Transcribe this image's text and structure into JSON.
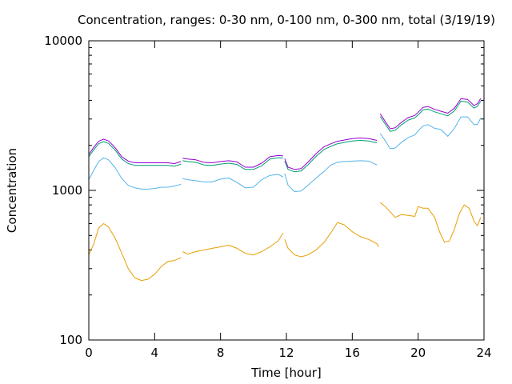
{
  "chart_data": {
    "type": "line",
    "title": "Concentration, ranges: 0-30 nm, 0-100 nm, 0-300 nm, total (3/19/19)",
    "xlabel": "Time [hour]",
    "ylabel": "Concentration",
    "xlim": [
      0,
      24
    ],
    "ylim": [
      100,
      10000
    ],
    "yscale": "log",
    "xticks": [
      "0",
      "4",
      "8",
      "12",
      "16",
      "20",
      "24"
    ],
    "yticks": [
      "100",
      "1000",
      "10000"
    ],
    "grid": false,
    "legend": "none",
    "series": [
      {
        "color": "#e69f00",
        "segments": [
          [
            [
              0,
              370
            ],
            [
              0.3,
              440
            ],
            [
              0.6,
              560
            ],
            [
              0.9,
              600
            ],
            [
              1.2,
              570
            ],
            [
              1.6,
              480
            ],
            [
              2.0,
              380
            ],
            [
              2.4,
              300
            ],
            [
              2.8,
              260
            ],
            [
              3.2,
              250
            ],
            [
              3.6,
              255
            ],
            [
              4.0,
              275
            ],
            [
              4.4,
              310
            ],
            [
              4.8,
              335
            ],
            [
              5.2,
              340
            ],
            [
              5.6,
              355
            ]
          ],
          [
            [
              5.7,
              390
            ],
            [
              6.0,
              375
            ],
            [
              6.5,
              390
            ],
            [
              7.0,
              400
            ],
            [
              7.5,
              410
            ],
            [
              8.0,
              420
            ],
            [
              8.5,
              430
            ],
            [
              9.0,
              410
            ],
            [
              9.5,
              380
            ],
            [
              10.0,
              370
            ],
            [
              10.5,
              390
            ],
            [
              11.0,
              420
            ],
            [
              11.5,
              460
            ],
            [
              11.8,
              520
            ]
          ],
          [
            [
              11.9,
              470
            ],
            [
              12.1,
              410
            ],
            [
              12.5,
              370
            ],
            [
              12.9,
              360
            ],
            [
              13.3,
              370
            ],
            [
              13.8,
              400
            ],
            [
              14.3,
              450
            ],
            [
              14.7,
              520
            ],
            [
              15.1,
              610
            ],
            [
              15.5,
              590
            ],
            [
              16.0,
              530
            ],
            [
              16.5,
              490
            ],
            [
              17.0,
              470
            ],
            [
              17.5,
              440
            ],
            [
              17.6,
              420
            ]
          ],
          [
            [
              17.7,
              830
            ],
            [
              18.0,
              780
            ],
            [
              18.3,
              720
            ],
            [
              18.6,
              660
            ],
            [
              19.0,
              690
            ],
            [
              19.4,
              680
            ],
            [
              19.8,
              670
            ],
            [
              20.0,
              780
            ],
            [
              20.3,
              760
            ],
            [
              20.6,
              760
            ],
            [
              21.0,
              660
            ],
            [
              21.3,
              530
            ],
            [
              21.6,
              450
            ],
            [
              21.9,
              460
            ],
            [
              22.2,
              550
            ],
            [
              22.5,
              700
            ],
            [
              22.8,
              800
            ],
            [
              23.1,
              760
            ],
            [
              23.4,
              620
            ],
            [
              23.6,
              580
            ],
            [
              23.8,
              660
            ]
          ]
        ]
      },
      {
        "color": "#56b4e9",
        "segments": [
          [
            [
              0,
              1180
            ],
            [
              0.3,
              1360
            ],
            [
              0.6,
              1560
            ],
            [
              0.9,
              1650
            ],
            [
              1.2,
              1600
            ],
            [
              1.6,
              1420
            ],
            [
              2.0,
              1200
            ],
            [
              2.4,
              1080
            ],
            [
              2.8,
              1040
            ],
            [
              3.2,
              1020
            ],
            [
              3.6,
              1020
            ],
            [
              4.0,
              1030
            ],
            [
              4.4,
              1050
            ],
            [
              4.8,
              1050
            ],
            [
              5.2,
              1070
            ],
            [
              5.6,
              1100
            ]
          ],
          [
            [
              5.7,
              1200
            ],
            [
              6.0,
              1180
            ],
            [
              6.5,
              1160
            ],
            [
              7.0,
              1140
            ],
            [
              7.5,
              1140
            ],
            [
              8.0,
              1190
            ],
            [
              8.5,
              1210
            ],
            [
              9.0,
              1130
            ],
            [
              9.5,
              1040
            ],
            [
              10.0,
              1050
            ],
            [
              10.5,
              1180
            ],
            [
              11.0,
              1260
            ],
            [
              11.5,
              1280
            ],
            [
              11.8,
              1230
            ]
          ],
          [
            [
              11.9,
              1300
            ],
            [
              12.1,
              1080
            ],
            [
              12.5,
              980
            ],
            [
              12.9,
              990
            ],
            [
              13.3,
              1080
            ],
            [
              13.8,
              1210
            ],
            [
              14.3,
              1340
            ],
            [
              14.7,
              1480
            ],
            [
              15.1,
              1540
            ],
            [
              15.5,
              1560
            ],
            [
              16.0,
              1570
            ],
            [
              16.5,
              1580
            ],
            [
              17.0,
              1570
            ],
            [
              17.5,
              1480
            ]
          ],
          [
            [
              17.7,
              2400
            ],
            [
              18.0,
              2150
            ],
            [
              18.3,
              1900
            ],
            [
              18.6,
              1920
            ],
            [
              19.0,
              2100
            ],
            [
              19.4,
              2250
            ],
            [
              19.8,
              2350
            ],
            [
              20.0,
              2500
            ],
            [
              20.3,
              2700
            ],
            [
              20.6,
              2750
            ],
            [
              21.0,
              2600
            ],
            [
              21.4,
              2550
            ],
            [
              21.8,
              2300
            ],
            [
              22.2,
              2600
            ],
            [
              22.6,
              3100
            ],
            [
              23.0,
              3100
            ],
            [
              23.4,
              2750
            ],
            [
              23.6,
              2750
            ],
            [
              23.8,
              3050
            ]
          ]
        ]
      },
      {
        "color": "#009e73",
        "segments": [
          [
            [
              0,
              1680
            ],
            [
              0.3,
              1870
            ],
            [
              0.6,
              2050
            ],
            [
              0.9,
              2120
            ],
            [
              1.2,
              2060
            ],
            [
              1.6,
              1860
            ],
            [
              2.0,
              1620
            ],
            [
              2.4,
              1510
            ],
            [
              2.8,
              1470
            ],
            [
              3.2,
              1470
            ],
            [
              3.6,
              1470
            ],
            [
              4.0,
              1470
            ],
            [
              4.4,
              1470
            ],
            [
              4.8,
              1470
            ],
            [
              5.2,
              1450
            ],
            [
              5.6,
              1500
            ]
          ],
          [
            [
              5.7,
              1580
            ],
            [
              6.0,
              1560
            ],
            [
              6.5,
              1540
            ],
            [
              7.0,
              1480
            ],
            [
              7.5,
              1470
            ],
            [
              8.0,
              1500
            ],
            [
              8.5,
              1520
            ],
            [
              9.0,
              1490
            ],
            [
              9.5,
              1380
            ],
            [
              10.0,
              1380
            ],
            [
              10.5,
              1460
            ],
            [
              11.0,
              1620
            ],
            [
              11.5,
              1650
            ],
            [
              11.8,
              1640
            ]
          ],
          [
            [
              11.9,
              1570
            ],
            [
              12.1,
              1380
            ],
            [
              12.5,
              1330
            ],
            [
              12.9,
              1350
            ],
            [
              13.3,
              1480
            ],
            [
              13.8,
              1690
            ],
            [
              14.3,
              1880
            ],
            [
              14.7,
              1970
            ],
            [
              15.1,
              2050
            ],
            [
              15.5,
              2090
            ],
            [
              16.0,
              2140
            ],
            [
              16.5,
              2160
            ],
            [
              17.0,
              2140
            ],
            [
              17.5,
              2080
            ]
          ],
          [
            [
              17.7,
              3120
            ],
            [
              18.0,
              2780
            ],
            [
              18.3,
              2480
            ],
            [
              18.6,
              2520
            ],
            [
              19.0,
              2750
            ],
            [
              19.4,
              2950
            ],
            [
              19.8,
              3050
            ],
            [
              20.0,
              3200
            ],
            [
              20.3,
              3450
            ],
            [
              20.6,
              3500
            ],
            [
              21.0,
              3350
            ],
            [
              21.4,
              3250
            ],
            [
              21.8,
              3150
            ],
            [
              22.2,
              3400
            ],
            [
              22.6,
              3950
            ],
            [
              23.0,
              3900
            ],
            [
              23.4,
              3550
            ],
            [
              23.6,
              3650
            ],
            [
              23.8,
              3950
            ]
          ]
        ]
      },
      {
        "color": "#9400d3",
        "segments": [
          [
            [
              0,
              1740
            ],
            [
              0.3,
              1940
            ],
            [
              0.6,
              2130
            ],
            [
              0.9,
              2200
            ],
            [
              1.2,
              2140
            ],
            [
              1.6,
              1930
            ],
            [
              2.0,
              1680
            ],
            [
              2.4,
              1570
            ],
            [
              2.8,
              1530
            ],
            [
              3.2,
              1530
            ],
            [
              3.6,
              1530
            ],
            [
              4.0,
              1530
            ],
            [
              4.4,
              1530
            ],
            [
              4.8,
              1530
            ],
            [
              5.2,
              1510
            ],
            [
              5.6,
              1560
            ]
          ],
          [
            [
              5.7,
              1640
            ],
            [
              6.0,
              1620
            ],
            [
              6.5,
              1600
            ],
            [
              7.0,
              1540
            ],
            [
              7.5,
              1530
            ],
            [
              8.0,
              1560
            ],
            [
              8.5,
              1580
            ],
            [
              9.0,
              1550
            ],
            [
              9.5,
              1430
            ],
            [
              10.0,
              1430
            ],
            [
              10.5,
              1520
            ],
            [
              11.0,
              1680
            ],
            [
              11.5,
              1710
            ],
            [
              11.8,
              1700
            ]
          ],
          [
            [
              11.9,
              1630
            ],
            [
              12.1,
              1430
            ],
            [
              12.5,
              1380
            ],
            [
              12.9,
              1400
            ],
            [
              13.3,
              1540
            ],
            [
              13.8,
              1760
            ],
            [
              14.3,
              1960
            ],
            [
              14.7,
              2050
            ],
            [
              15.1,
              2130
            ],
            [
              15.5,
              2170
            ],
            [
              16.0,
              2220
            ],
            [
              16.5,
              2240
            ],
            [
              17.0,
              2220
            ],
            [
              17.5,
              2160
            ]
          ],
          [
            [
              17.7,
              3250
            ],
            [
              18.0,
              2890
            ],
            [
              18.3,
              2580
            ],
            [
              18.6,
              2620
            ],
            [
              19.0,
              2860
            ],
            [
              19.4,
              3070
            ],
            [
              19.8,
              3170
            ],
            [
              20.0,
              3330
            ],
            [
              20.3,
              3590
            ],
            [
              20.6,
              3640
            ],
            [
              21.0,
              3480
            ],
            [
              21.4,
              3380
            ],
            [
              21.8,
              3280
            ],
            [
              22.2,
              3540
            ],
            [
              22.6,
              4100
            ],
            [
              23.0,
              4060
            ],
            [
              23.4,
              3690
            ],
            [
              23.6,
              3800
            ],
            [
              23.8,
              4110
            ]
          ]
        ]
      }
    ]
  }
}
